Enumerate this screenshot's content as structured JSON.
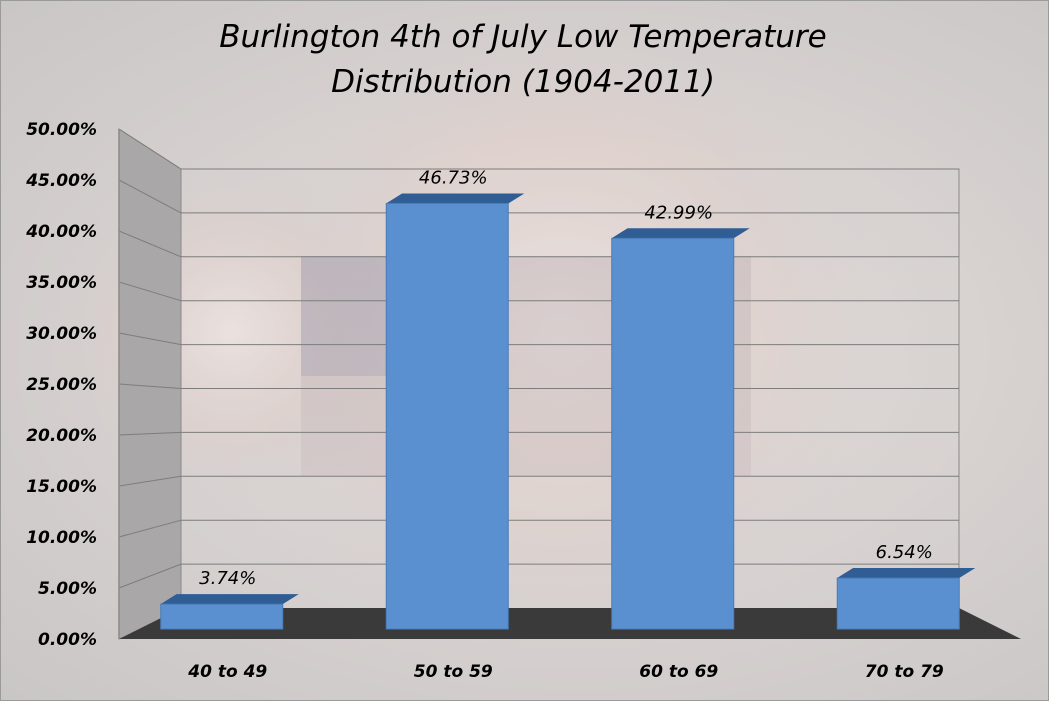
{
  "chart_data": {
    "type": "bar",
    "title": "Burlington 4th of July Low Temperature Distribution (1904-2011)",
    "title_lines": [
      "Burlington 4th of July Low Temperature",
      "Distribution (1904-2011)"
    ],
    "categories": [
      "40 to 49",
      "50 to 59",
      "60 to 69",
      "70 to 79"
    ],
    "values": [
      3.74,
      46.73,
      42.99,
      6.54
    ],
    "data_labels": [
      "3.74%",
      "46.73%",
      "42.99%",
      "6.54%"
    ],
    "ylim": [
      0,
      50
    ],
    "yticks": [
      "0.00%",
      "5.00%",
      "10.00%",
      "15.00%",
      "20.00%",
      "25.00%",
      "30.00%",
      "35.00%",
      "40.00%",
      "45.00%",
      "50.00%"
    ],
    "grid": true,
    "legend": "none",
    "style": "3d-column",
    "bar_color": "#5a8fd0",
    "floor_color": "#3a3a3a"
  }
}
